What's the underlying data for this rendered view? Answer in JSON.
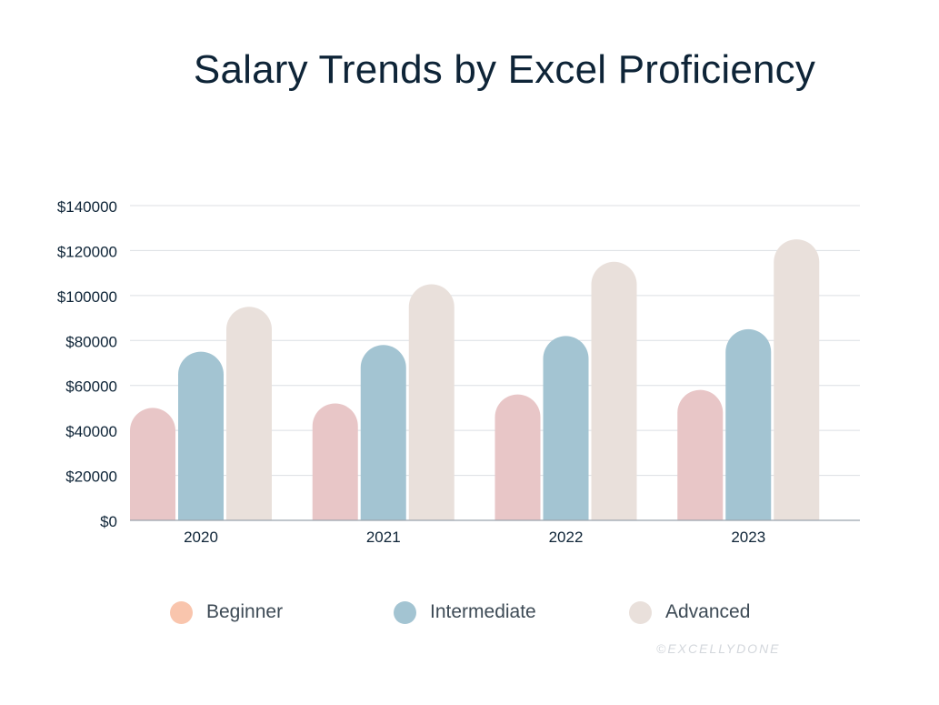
{
  "title": "Salary Trends by Excel Proficiency",
  "watermark": "©EXCELLYDONE",
  "chart_data": {
    "type": "bar",
    "title": "Salary Trends by Excel Proficiency",
    "xlabel": "",
    "ylabel": "",
    "categories": [
      "2020",
      "2021",
      "2022",
      "2023"
    ],
    "ylim": [
      0,
      140000
    ],
    "yticks": [
      0,
      20000,
      40000,
      60000,
      80000,
      100000,
      120000,
      140000
    ],
    "ytick_labels": [
      "$0",
      "$20000",
      "$40000",
      "$60000",
      "$80000",
      "$100000",
      "$120000",
      "$140000"
    ],
    "grid": true,
    "legend_position": "bottom",
    "series": [
      {
        "name": "Beginner",
        "values": [
          50000,
          52000,
          56000,
          58000
        ],
        "color": "#e8c6c7",
        "legend_color": "#f9c5ad"
      },
      {
        "name": "Intermediate",
        "values": [
          75000,
          78000,
          82000,
          85000
        ],
        "color": "#a3c4d2",
        "legend_color": "#a3c4d2"
      },
      {
        "name": "Advanced",
        "values": [
          95000,
          105000,
          115000,
          125000
        ],
        "color": "#e9e0db",
        "legend_color": "#e9e0db"
      }
    ]
  }
}
